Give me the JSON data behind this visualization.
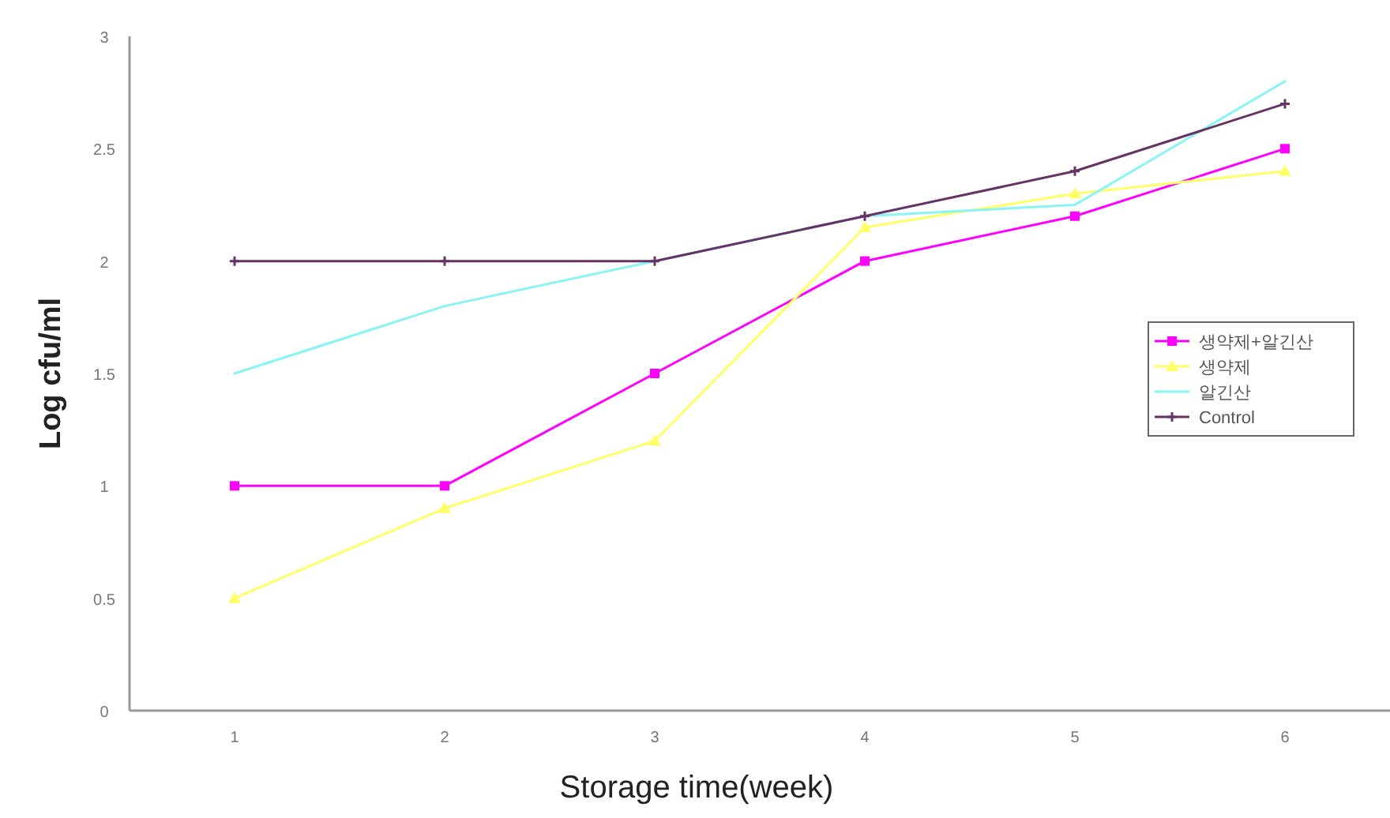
{
  "chart_data": {
    "type": "line",
    "xlabel": "Storage time(week)",
    "ylabel": "Log cfu/ml",
    "x": [
      1,
      2,
      3,
      4,
      5,
      6
    ],
    "xlim": [
      0.5,
      6.5
    ],
    "xticks": [
      1,
      2,
      3,
      4,
      5,
      6
    ],
    "ylim": [
      0,
      3
    ],
    "yticks": [
      0,
      0.5,
      1,
      1.5,
      2,
      2.5,
      3
    ],
    "grid": false,
    "legend": "right",
    "line_style": "solid",
    "series": [
      {
        "name": "생약제+알긴산",
        "color": "#ff00ff",
        "marker": "square",
        "values": [
          1,
          1,
          1.5,
          2,
          2.2,
          2.5
        ]
      },
      {
        "name": "생약제",
        "color": "#ffff66",
        "marker": "triangle",
        "values": [
          0.5,
          0.9,
          1.2,
          2.15,
          2.3,
          2.4
        ]
      },
      {
        "name": "알긴산",
        "color": "#88f4f4",
        "marker": "none",
        "values": [
          1.5,
          1.8,
          2,
          2.2,
          2.25,
          2.8
        ]
      },
      {
        "name": "Control",
        "color": "#663366",
        "marker": "cross",
        "values": [
          2,
          2,
          2,
          2.2,
          2.4,
          2.7
        ]
      }
    ]
  }
}
